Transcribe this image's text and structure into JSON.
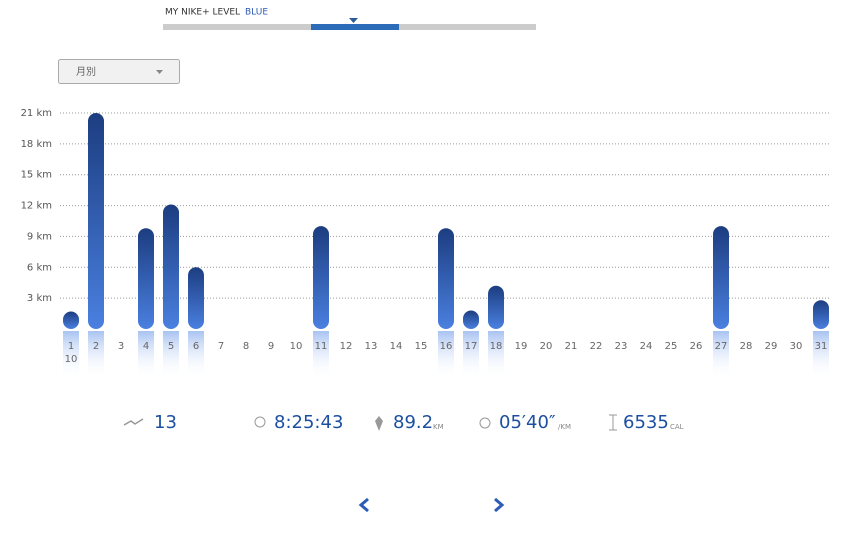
{
  "header": {
    "level_label": "MY NIKE+ LEVEL",
    "level_value": "BLUE"
  },
  "dropdown": {
    "label": "月別"
  },
  "chart_data": {
    "type": "bar",
    "month_label": "10",
    "categories": [
      "1",
      "2",
      "3",
      "4",
      "5",
      "6",
      "7",
      "8",
      "9",
      "10",
      "11",
      "12",
      "13",
      "14",
      "15",
      "16",
      "17",
      "18",
      "19",
      "20",
      "21",
      "22",
      "23",
      "24",
      "25",
      "26",
      "27",
      "28",
      "29",
      "30",
      "31"
    ],
    "values": [
      1.7,
      21,
      null,
      9.8,
      12.1,
      6,
      null,
      null,
      null,
      null,
      10,
      null,
      null,
      null,
      null,
      9.8,
      1.8,
      4.2,
      null,
      null,
      null,
      null,
      null,
      null,
      null,
      null,
      10,
      null,
      null,
      null,
      2.8
    ],
    "color": "#2c5bb8",
    "ylim": [
      0,
      21
    ],
    "yticks": [
      {
        "value": 3,
        "label": "3 km"
      },
      {
        "value": 6,
        "label": "6 km"
      },
      {
        "value": 9,
        "label": "9 km"
      },
      {
        "value": 12,
        "label": "12 km"
      },
      {
        "value": 15,
        "label": "15 km"
      },
      {
        "value": 18,
        "label": "18 km"
      },
      {
        "value": 21,
        "label": "21 km"
      }
    ],
    "grid": true
  },
  "stats": {
    "runs": "13",
    "duration": "8:25:43",
    "distance": "89.2",
    "distance_unit": "KM",
    "pace": "05′40″",
    "pace_unit": "/KM",
    "calories": "6535",
    "calories_unit": "CAL"
  }
}
